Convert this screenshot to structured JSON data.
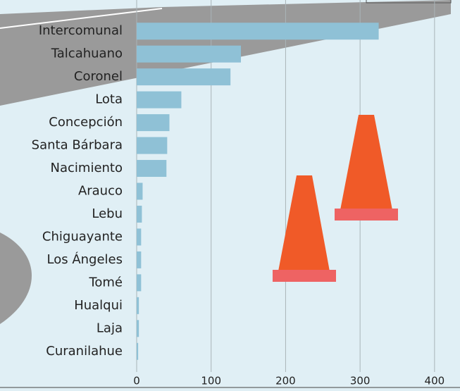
{
  "chart_data": {
    "type": "bar",
    "orientation": "horizontal",
    "categories": [
      "Intercomunal",
      "Talcahuano",
      "Coronel",
      "Lota",
      "Concepción",
      "Santa Bárbara",
      "Nacimiento",
      "Arauco",
      "Lebu",
      "Chiguayante",
      "Los Ángeles",
      "Tomé",
      "Hualqui",
      "Laja",
      "Curanilahue"
    ],
    "values": [
      325,
      140,
      126,
      60,
      44,
      41,
      40,
      8,
      7,
      6,
      6,
      6,
      3,
      3,
      2
    ],
    "color": "#8fc1d6",
    "xlim": [
      0,
      420
    ],
    "xticks": [
      0,
      100,
      200,
      300,
      400
    ],
    "grid": true
  }
}
